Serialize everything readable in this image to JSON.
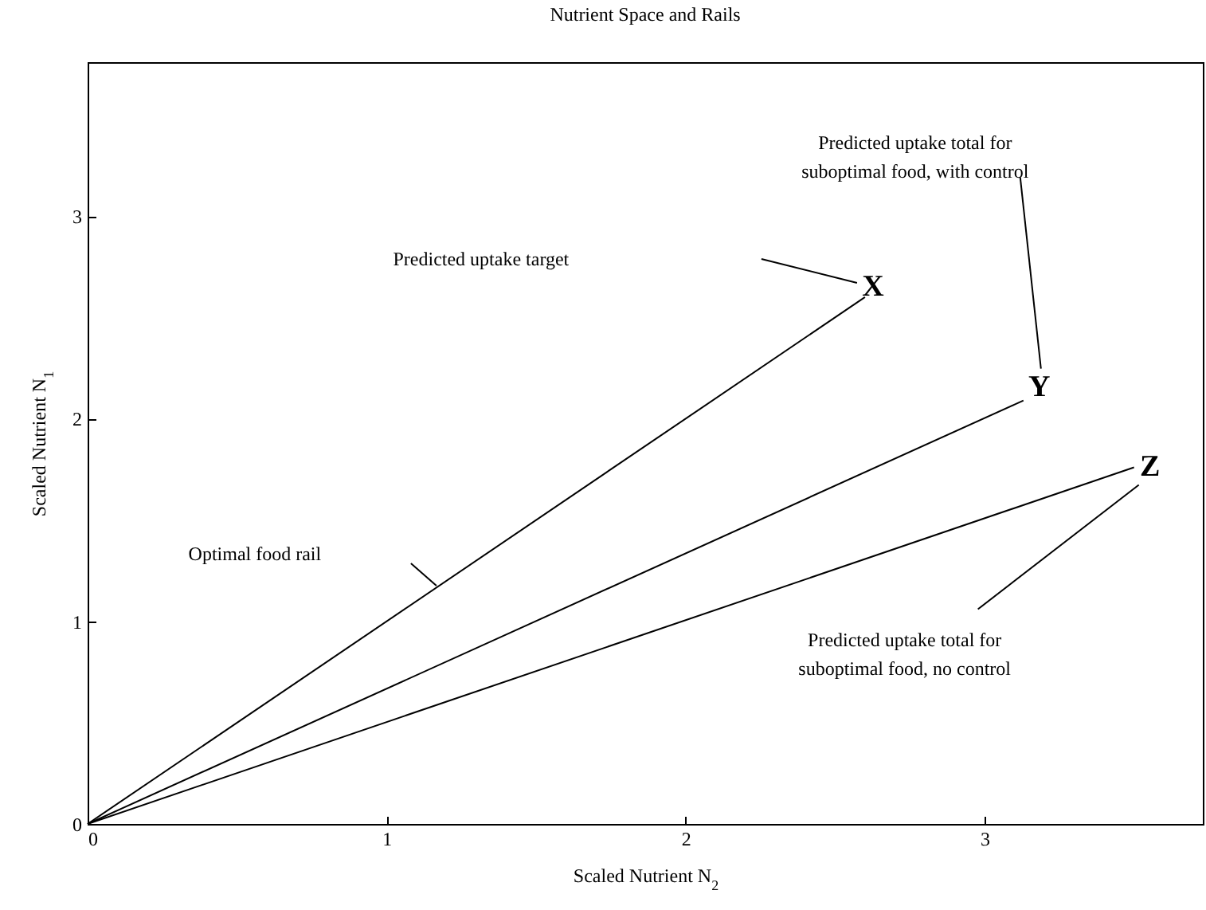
{
  "chart_data": {
    "type": "line",
    "title": "Nutrient Space and Rails",
    "xlabel": "Scaled Nutrient N$_{2}$",
    "ylabel": "Scaled Nutrient N$_{1}$",
    "xlim": [
      0,
      3.73
    ],
    "ylim": [
      0,
      3.76
    ],
    "xticks": [
      0,
      1,
      2,
      3
    ],
    "yticks": [
      0,
      1,
      2,
      3
    ],
    "grid": false,
    "legend": false,
    "marker": "none",
    "line_style": "solid",
    "series": [
      {
        "color": "#000000",
        "x": [
          0,
          2.6
        ],
        "values": [
          0,
          2.6
        ]
      },
      {
        "color": "#000000",
        "x": [
          0,
          3.13
        ],
        "values": [
          0,
          2.09
        ]
      },
      {
        "color": "#000000",
        "x": [
          0,
          3.5
        ],
        "values": [
          0,
          1.76
        ]
      }
    ],
    "annotations": [
      "Predicted uptake target",
      "Optimal food rail",
      "Predicted uptake total for\nsuboptimal food, with control",
      "Predicted uptake total for\nsuboptimal food, no control",
      "X",
      "Y",
      "Z"
    ]
  }
}
